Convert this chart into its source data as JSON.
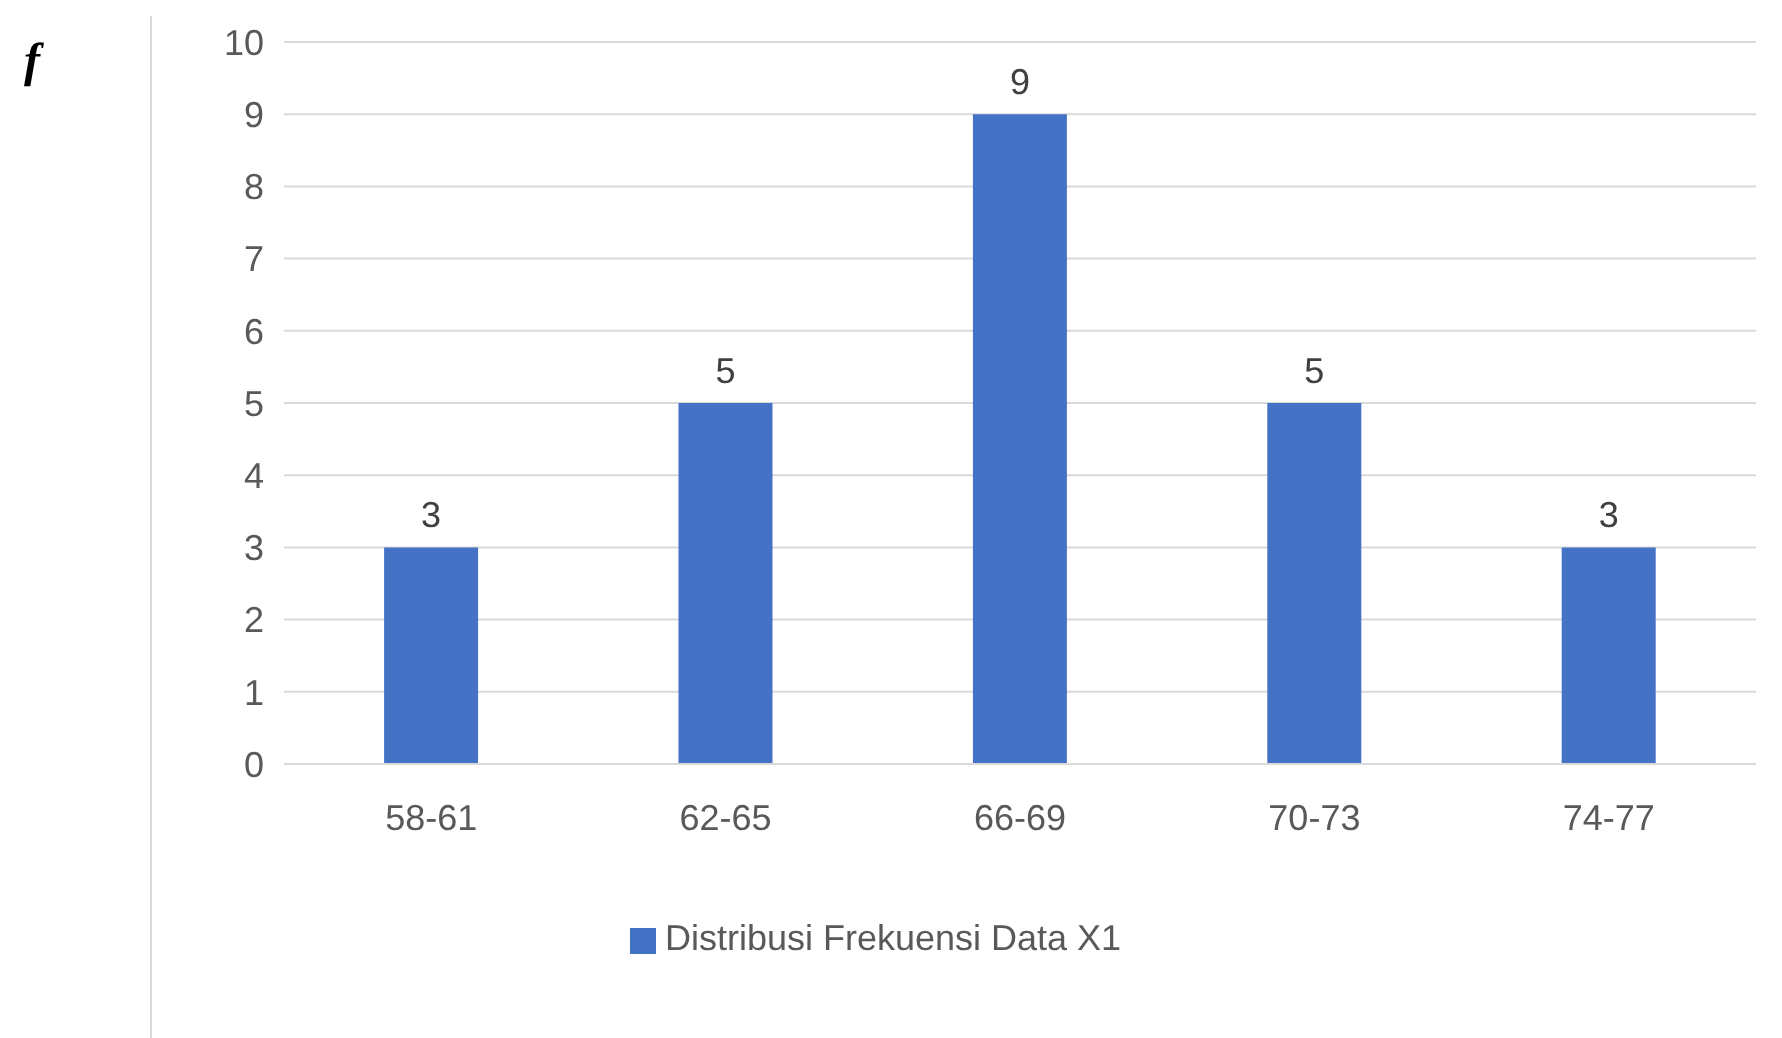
{
  "chart_data": {
    "type": "bar",
    "ylabel": "f",
    "categories": [
      "58-61",
      "62-65",
      "66-69",
      "70-73",
      "74-77"
    ],
    "series": [
      {
        "name": "Distribusi Frekuensi Data X1",
        "color": "#4472c4",
        "values": [
          3,
          5,
          9,
          5,
          3
        ]
      }
    ],
    "ylim": [
      0,
      10
    ],
    "yticks": [
      0,
      1,
      2,
      3,
      4,
      5,
      6,
      7,
      8,
      9,
      10
    ],
    "grid": "y",
    "legend": "bottom",
    "data_labels": true
  }
}
